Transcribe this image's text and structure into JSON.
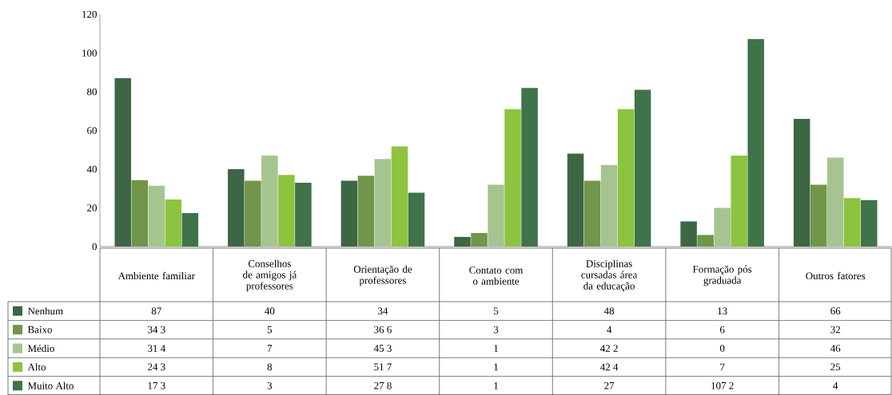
{
  "chart_data": {
    "type": "bar",
    "categories": [
      "Ambiente familiar",
      "Conselhos de amigos já professores",
      "Orientação de professores",
      "Contato com o ambiente",
      "Disciplinas cursadas área da educação",
      "Formação pós graduada",
      "Outros fatores"
    ],
    "series": [
      {
        "name": "Nenhum",
        "color": "#3d6645",
        "values": [
          87,
          40,
          34,
          5,
          48,
          13,
          66
        ]
      },
      {
        "name": "Baixo",
        "color": "#71954a",
        "values": [
          34.3,
          34,
          36.6,
          7,
          34,
          6,
          32
        ]
      },
      {
        "name": "Médio",
        "color": "#a6c48f",
        "values": [
          31.4,
          47,
          45.3,
          32,
          42.2,
          20,
          46
        ]
      },
      {
        "name": "Alto",
        "color": "#8cc43f",
        "values": [
          24.3,
          37,
          51.7,
          71,
          71,
          47,
          25
        ]
      },
      {
        "name": "Muito Alto",
        "color": "#3f734a",
        "values": [
          17.3,
          33,
          27.8,
          82,
          81,
          107.2,
          24
        ]
      }
    ],
    "annotations": [
      "87",
      "40",
      "34",
      "5",
      "48",
      "13",
      "66",
      "34 3",
      "5",
      "36 6",
      "3",
      "4",
      "6",
      "32",
      "31 4",
      "7",
      "45 3",
      "1",
      "42 2",
      "0",
      "46",
      "24 3",
      "8",
      "51 7",
      "1",
      "42 4",
      "7",
      "25",
      "17 3",
      "3",
      "27 8",
      "1",
      "27",
      "107 2",
      "4"
    ],
    "ylim": [
      0,
      120
    ],
    "yticks": [
      0,
      20,
      40,
      60,
      80,
      100,
      120
    ],
    "legend": "bottom"
  }
}
